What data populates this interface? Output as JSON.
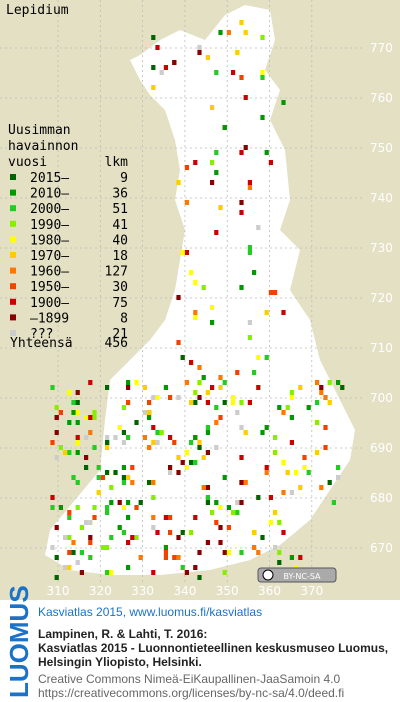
{
  "title": "Lepidium",
  "legend": {
    "heading": [
      "Uusimman",
      "havainnon",
      "vuosi"
    ],
    "count_heading": "lkm",
    "rows": [
      {
        "label": "2015–",
        "count": 9,
        "color": "#006400"
      },
      {
        "label": "2010–",
        "count": 36,
        "color": "#009900"
      },
      {
        "label": "2000–",
        "count": 51,
        "color": "#22cc22"
      },
      {
        "label": "1990–",
        "count": 41,
        "color": "#88ee00"
      },
      {
        "label": "1980–",
        "count": 40,
        "color": "#ffff00"
      },
      {
        "label": "1970–",
        "count": 18,
        "color": "#ffcc00"
      },
      {
        "label": "1960–",
        "count": 127,
        "color": "#ff7700"
      },
      {
        "label": "1950–",
        "count": 30,
        "color": "#ee4400"
      },
      {
        "label": "1900–",
        "count": 75,
        "color": "#cc0000"
      },
      {
        "label": "–1899",
        "count": 8,
        "color": "#880000"
      },
      {
        "label": "???",
        "count": 21,
        "color": "#cccccc"
      }
    ],
    "total_label": "Yhteensä",
    "total": 456
  },
  "grid": {
    "xticks": [
      310,
      320,
      330,
      340,
      350,
      360,
      370
    ],
    "yticks": [
      770,
      760,
      750,
      740,
      730,
      720,
      710,
      700,
      690,
      680,
      670
    ]
  },
  "license_badge": "BY-NC-SA",
  "footer": {
    "brand": "LUOMUS",
    "link": "Kasviatlas 2015, www.luomus.fi/kasviatlas",
    "citation": [
      "Lampinen, R. & Lahti, T. 2016:",
      "Kasviatlas 2015 - Luonnontieteellinen keskusmuseo Luomus,",
      "Helsingin Yliopisto, Helsinki."
    ],
    "license": [
      "Creative Commons Nimeä-EiKaupallinen-JaaSamoin 4.0",
      "https://creativecommons.org/licenses/by-nc-sa/4.0/deed.fi"
    ]
  }
}
